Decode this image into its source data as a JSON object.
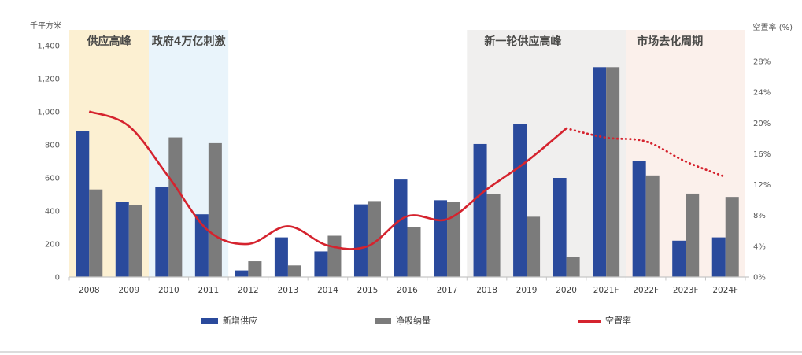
{
  "chart_data": {
    "type": "bar",
    "title": "",
    "categories": [
      "2008",
      "2009",
      "2010",
      "2011",
      "2012",
      "2013",
      "2014",
      "2015",
      "2016",
      "2017",
      "2018",
      "2019",
      "2020",
      "2021F",
      "2022F",
      "2023F",
      "2024F"
    ],
    "series": [
      {
        "name": "新增供应",
        "kind": "bar",
        "axis": "left",
        "color": "#2A4A9C",
        "values": [
          885,
          455,
          545,
          380,
          40,
          240,
          155,
          440,
          590,
          465,
          805,
          925,
          600,
          1270,
          700,
          220,
          240
        ]
      },
      {
        "name": "净吸纳量",
        "kind": "bar",
        "axis": "left",
        "color": "#7B7B7B",
        "values": [
          530,
          435,
          845,
          810,
          95,
          70,
          250,
          460,
          300,
          455,
          500,
          365,
          120,
          1270,
          615,
          505,
          485
        ]
      },
      {
        "name": "空置率",
        "kind": "line",
        "axis": "right",
        "color": "#D5232E",
        "values": [
          21.5,
          19.6,
          13.0,
          6.0,
          4.3,
          6.6,
          4.1,
          4.0,
          7.9,
          7.5,
          11.4,
          15.0,
          19.3,
          18.1,
          17.6,
          15.0,
          13.0
        ],
        "solid_through_index": 12,
        "dotted_from_index": 12
      }
    ],
    "left_axis": {
      "title": "千平方米",
      "min": 0,
      "max": 1400,
      "step": 200,
      "ticks": [
        "1,400",
        "1,200",
        "1,000",
        "800",
        "600",
        "400",
        "200",
        "0"
      ]
    },
    "right_axis": {
      "title": "空置率 (%)",
      "min": 0,
      "max": 28,
      "step": 4,
      "ticks": [
        "28%",
        "24%",
        "20%",
        "16%",
        "12%",
        "8%",
        "4%",
        "0%"
      ]
    },
    "regions": [
      {
        "label": "供应高峰",
        "from": "2008",
        "to": "2009",
        "color": "#FCF0D2"
      },
      {
        "label": "政府4万亿刺激",
        "from": "2010",
        "to": "2011",
        "color": "#E9F4FB"
      },
      {
        "label": "新一轮供应高峰",
        "from": "2018",
        "to": "2021F",
        "color": "#F0EFEE"
      },
      {
        "label": "市场去化周期",
        "from": "2022F",
        "to": "2024F",
        "color": "#FBF0EB"
      }
    ],
    "legend": [
      {
        "label": "新增供应",
        "swatch": "bar",
        "color": "#2A4A9C"
      },
      {
        "label": "净吸纳量",
        "swatch": "bar",
        "color": "#7B7B7B"
      },
      {
        "label": "空置率",
        "swatch": "line",
        "color": "#D5232E"
      }
    ],
    "grid": false,
    "legend_position": "bottom"
  }
}
